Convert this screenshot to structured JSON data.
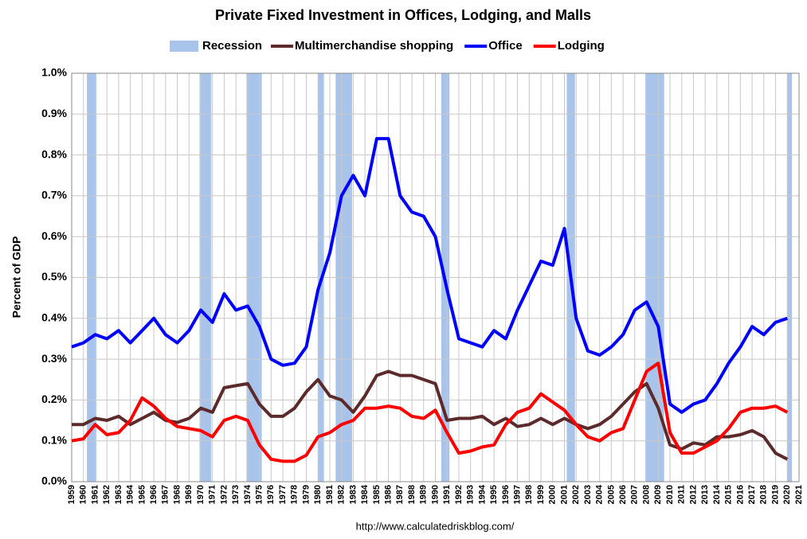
{
  "chart_data": {
    "type": "line",
    "title": "Private Fixed Investment in Offices, Lodging, and Malls",
    "y_label": "Percent of GDP",
    "source": "http://www.calculatedriskblog.com/",
    "recession_label": "Recession",
    "recession_color": "#a9c4eb",
    "recessions": [
      [
        1960.3,
        1961.1
      ],
      [
        1969.9,
        1970.9
      ],
      [
        1973.9,
        1975.2
      ],
      [
        1980.0,
        1980.5
      ],
      [
        1981.5,
        1982.9
      ],
      [
        1990.5,
        1991.2
      ],
      [
        2001.2,
        2001.9
      ],
      [
        2007.9,
        2009.5
      ],
      [
        2020.0,
        2020.4
      ]
    ],
    "x": [
      1959,
      1960,
      1961,
      1962,
      1963,
      1964,
      1965,
      1966,
      1967,
      1968,
      1969,
      1970,
      1971,
      1972,
      1973,
      1974,
      1975,
      1976,
      1977,
      1978,
      1979,
      1980,
      1981,
      1982,
      1983,
      1984,
      1985,
      1986,
      1987,
      1988,
      1989,
      1990,
      1991,
      1992,
      1993,
      1994,
      1995,
      1996,
      1997,
      1998,
      1999,
      2000,
      2001,
      2002,
      2003,
      2004,
      2005,
      2006,
      2007,
      2008,
      2009,
      2010,
      2011,
      2012,
      2013,
      2014,
      2015,
      2016,
      2017,
      2018,
      2019,
      2020
    ],
    "series": [
      {
        "name": "Multimerchandise shopping",
        "color": "#5c2a2a",
        "values": [
          0.14,
          0.14,
          0.155,
          0.15,
          0.16,
          0.14,
          0.155,
          0.17,
          0.15,
          0.145,
          0.155,
          0.18,
          0.17,
          0.23,
          0.235,
          0.24,
          0.19,
          0.16,
          0.16,
          0.18,
          0.22,
          0.25,
          0.21,
          0.2,
          0.17,
          0.21,
          0.26,
          0.27,
          0.26,
          0.26,
          0.25,
          0.24,
          0.15,
          0.155,
          0.155,
          0.16,
          0.14,
          0.155,
          0.135,
          0.14,
          0.155,
          0.14,
          0.155,
          0.14,
          0.13,
          0.14,
          0.16,
          0.19,
          0.22,
          0.24,
          0.18,
          0.09,
          0.08,
          0.095,
          0.09,
          0.11,
          0.11,
          0.115,
          0.125,
          0.11,
          0.07,
          0.055
        ]
      },
      {
        "name": "Office",
        "color": "#0000ff",
        "values": [
          0.33,
          0.34,
          0.36,
          0.35,
          0.37,
          0.34,
          0.37,
          0.4,
          0.36,
          0.34,
          0.37,
          0.42,
          0.39,
          0.46,
          0.42,
          0.43,
          0.38,
          0.3,
          0.285,
          0.29,
          0.33,
          0.47,
          0.56,
          0.7,
          0.75,
          0.7,
          0.84,
          0.84,
          0.7,
          0.66,
          0.65,
          0.6,
          0.47,
          0.35,
          0.34,
          0.33,
          0.37,
          0.35,
          0.42,
          0.48,
          0.54,
          0.53,
          0.62,
          0.4,
          0.32,
          0.31,
          0.33,
          0.36,
          0.42,
          0.44,
          0.38,
          0.19,
          0.17,
          0.19,
          0.2,
          0.24,
          0.29,
          0.33,
          0.38,
          0.36,
          0.39,
          0.4
        ]
      },
      {
        "name": "Lodging",
        "color": "#ff0000",
        "values": [
          0.1,
          0.105,
          0.14,
          0.115,
          0.12,
          0.15,
          0.205,
          0.185,
          0.155,
          0.135,
          0.13,
          0.125,
          0.11,
          0.15,
          0.16,
          0.15,
          0.09,
          0.055,
          0.05,
          0.05,
          0.065,
          0.11,
          0.12,
          0.14,
          0.15,
          0.18,
          0.18,
          0.185,
          0.18,
          0.16,
          0.155,
          0.175,
          0.12,
          0.07,
          0.075,
          0.085,
          0.09,
          0.14,
          0.17,
          0.18,
          0.215,
          0.195,
          0.175,
          0.14,
          0.11,
          0.1,
          0.12,
          0.13,
          0.2,
          0.27,
          0.29,
          0.12,
          0.07,
          0.07,
          0.085,
          0.1,
          0.13,
          0.17,
          0.18,
          0.18,
          0.185,
          0.17
        ]
      }
    ],
    "xlim": [
      1959,
      2021
    ],
    "xticks": [
      1959,
      1960,
      1961,
      1962,
      1963,
      1964,
      1965,
      1966,
      1967,
      1968,
      1969,
      1970,
      1971,
      1972,
      1973,
      1974,
      1975,
      1976,
      1977,
      1978,
      1979,
      1980,
      1981,
      1982,
      1983,
      1984,
      1985,
      1986,
      1987,
      1988,
      1989,
      1990,
      1991,
      1992,
      1993,
      1994,
      1995,
      1996,
      1997,
      1998,
      1999,
      2000,
      2001,
      2002,
      2003,
      2004,
      2005,
      2006,
      2007,
      2008,
      2009,
      2010,
      2011,
      2012,
      2013,
      2014,
      2015,
      2016,
      2017,
      2018,
      2019,
      2020,
      2021
    ],
    "ylim": [
      0,
      1.0
    ],
    "yticks": [
      {
        "value": 0,
        "label": "0.0%"
      },
      {
        "value": 0.1,
        "label": "0.1%"
      },
      {
        "value": 0.2,
        "label": "0.2%"
      },
      {
        "value": 0.3,
        "label": "0.3%"
      },
      {
        "value": 0.4,
        "label": "0.4%"
      },
      {
        "value": 0.5,
        "label": "0.5%"
      },
      {
        "value": 0.6,
        "label": "0.6%"
      },
      {
        "value": 0.7,
        "label": "0.7%"
      },
      {
        "value": 0.8,
        "label": "0.8%"
      },
      {
        "value": 0.9,
        "label": "0.9%"
      },
      {
        "value": 1.0,
        "label": "1.0%"
      }
    ],
    "grid": true
  }
}
